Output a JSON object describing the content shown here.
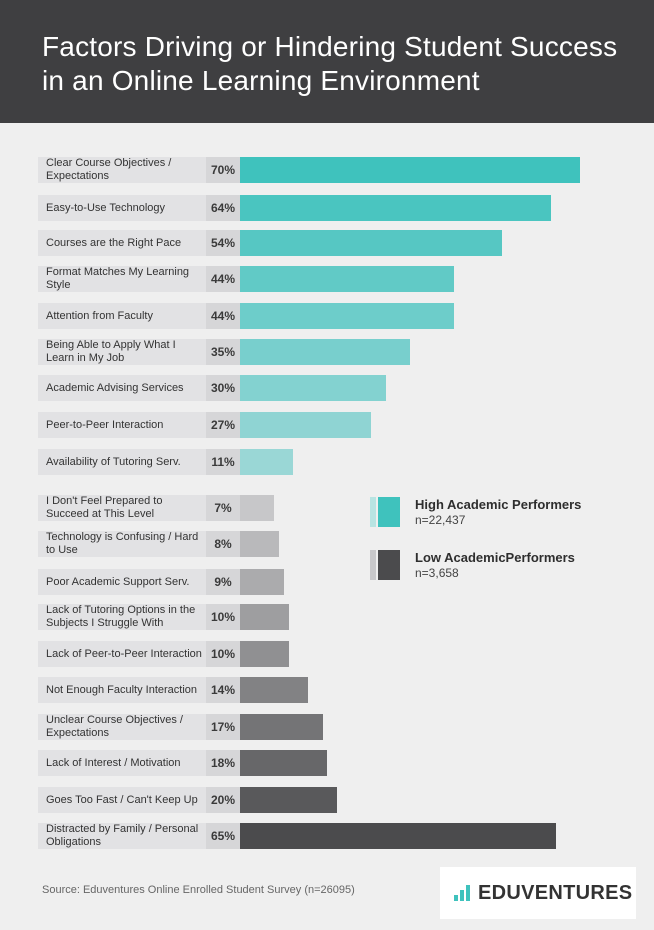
{
  "header": {
    "title": "Factors Driving or Hindering Student Success in an Online Learning Environment"
  },
  "chart_data": {
    "type": "bar",
    "orientation": "horizontal",
    "xlim": [
      0,
      100
    ],
    "groups": [
      {
        "name": "High Academic Performers",
        "n_label": "n=22,437",
        "categories": [
          "Clear Course Objectives / Expectations",
          "Easy-to-Use Technology",
          "Courses are the Right Pace",
          "Format Matches My Learning Style",
          "Attention from Faculty",
          "Being Able to Apply What I Learn in My Job",
          "Academic Advising Services",
          "Peer-to-Peer Interaction",
          "Availability of Tutoring Serv."
        ],
        "values": [
          70,
          64,
          54,
          44,
          44,
          35,
          30,
          27,
          11
        ],
        "value_labels": [
          "70%",
          "64%",
          "54%",
          "44%",
          "44%",
          "35%",
          "30%",
          "27%",
          "11%"
        ]
      },
      {
        "name": "Low AcademicPerformers",
        "n_label": "n=3,658",
        "categories": [
          "I Don't Feel Prepared to Succeed at This Level",
          "Technology is Confusing / Hard to Use",
          "Poor Academic Support Serv.",
          "Lack of Tutoring Options in the Subjects I Struggle With",
          "Lack of Peer-to-Peer Interaction",
          "Not Enough Faculty Interaction",
          "Unclear Course Objectives / Expectations",
          "Lack of Interest / Motivation",
          "Goes Too Fast / Can't Keep Up",
          "Distracted by Family / Personal Obligations"
        ],
        "values": [
          7,
          8,
          9,
          10,
          10,
          14,
          17,
          18,
          20,
          65
        ],
        "value_labels": [
          "7%",
          "8%",
          "9%",
          "10%",
          "10%",
          "14%",
          "17%",
          "18%",
          "20%",
          "65%"
        ]
      }
    ],
    "legend": "right"
  },
  "colors": {
    "high_gradient": [
      "#3fc2bd",
      "#9ad7d6"
    ],
    "low_gradient": [
      "#c7c7c9",
      "#4b4b4d"
    ],
    "high_legend": "#3fc2bd",
    "low_legend": "#4b4b4d"
  },
  "footer": {
    "source": "Source: Eduventures Online Enrolled Student Survey (n=26095)",
    "logo_text": "EDUVENTURES"
  }
}
